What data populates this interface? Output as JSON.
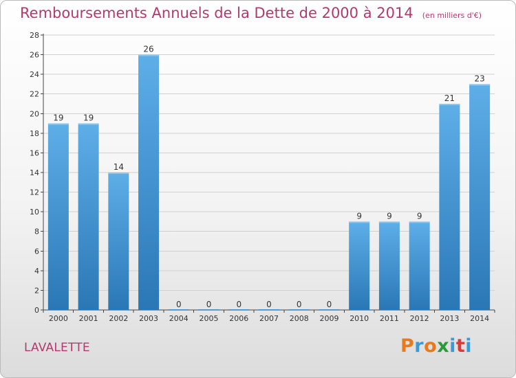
{
  "colors": {
    "title": "#b03a6e",
    "bar_top": "#5eaee8",
    "bar_bottom": "#2a77b5",
    "axis": "#444444",
    "grid": "#d0d0d0"
  },
  "header": {
    "title": "Remboursements Annuels de la Dette de 2000 à 2014",
    "subtitle": "(en milliers d'€)"
  },
  "footer": {
    "city": "LAVALETTE",
    "logo": "Proxiti",
    "logo_colors": [
      "#e87a1c",
      "#3a9ad9",
      "#e87a1c",
      "#2a9a3a",
      "#3a9ad9",
      "#d93a3a",
      "#3a9ad9"
    ]
  },
  "chart_data": {
    "type": "bar",
    "title": "Remboursements Annuels de la Dette de 2000 à 2014",
    "subtitle": "(en milliers d'€)",
    "xlabel": "",
    "ylabel": "",
    "categories": [
      "2000",
      "2001",
      "2002",
      "2003",
      "2004",
      "2005",
      "2006",
      "2007",
      "2008",
      "2009",
      "2010",
      "2011",
      "2012",
      "2013",
      "2014"
    ],
    "values": [
      19,
      19,
      14,
      26,
      0,
      0,
      0,
      0,
      0,
      0,
      9,
      9,
      9,
      21,
      23
    ],
    "ylim": [
      0,
      28
    ],
    "yticks": [
      0,
      2,
      4,
      6,
      8,
      10,
      12,
      14,
      16,
      18,
      20,
      22,
      24,
      26,
      28
    ],
    "grid": true,
    "data_labels": true
  }
}
